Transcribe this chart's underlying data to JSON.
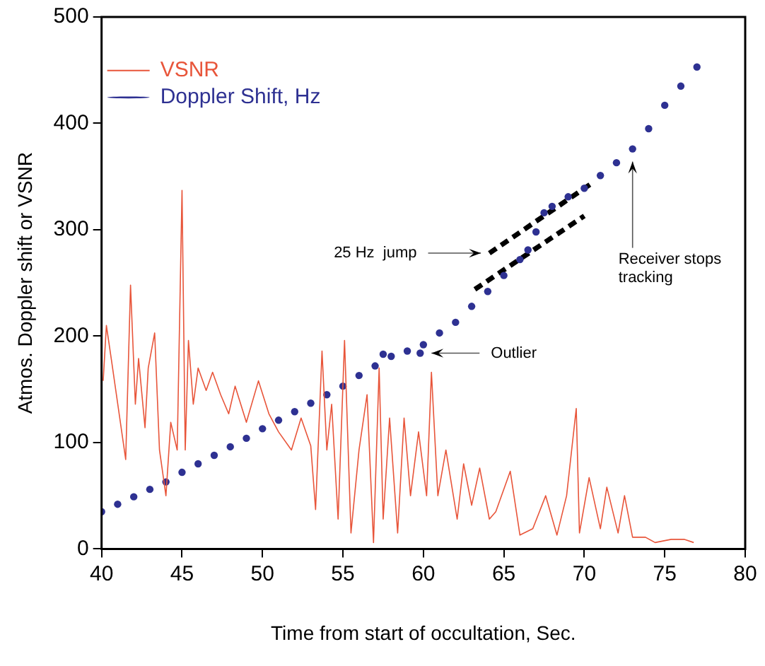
{
  "chart_data": {
    "type": "line",
    "xlabel": "Time from start of occultation, Sec.",
    "ylabel": "Atmos. Doppler shift or VSNR",
    "xlim": [
      40,
      80
    ],
    "xticks": [
      40,
      45,
      50,
      55,
      60,
      65,
      70,
      75,
      80
    ],
    "ylim": [
      0,
      500
    ],
    "yticks": [
      0,
      100,
      200,
      300,
      400,
      500
    ],
    "grid": false,
    "legend": "top left",
    "series": [
      {
        "name": "VSNR",
        "type": "line",
        "color": "#e8553a",
        "marker": "none",
        "x": [
          40.1,
          40.3,
          40.6,
          41.5,
          41.8,
          42.1,
          42.3,
          42.7,
          42.9,
          43.3,
          43.6,
          44.0,
          44.3,
          44.7,
          45.0,
          45.2,
          45.4,
          45.7,
          46.0,
          46.5,
          46.9,
          47.4,
          47.9,
          48.3,
          49.0,
          49.75,
          50.4,
          51.0,
          51.8,
          52.4,
          53.0,
          53.3,
          53.7,
          54.0,
          54.3,
          54.7,
          55.1,
          55.5,
          56.0,
          56.5,
          56.9,
          57.25,
          57.5,
          57.9,
          58.4,
          58.8,
          59.2,
          59.7,
          60.2,
          60.5,
          60.9,
          61.4,
          62.1,
          62.5,
          63.0,
          63.5,
          64.1,
          64.5,
          65.4,
          66.0,
          66.8,
          67.6,
          68.3,
          68.9,
          69.5,
          69.7,
          70.3,
          71.0,
          71.4,
          72.1,
          72.5,
          73.0,
          73.8,
          74.4,
          75.4,
          76.2,
          76.8
        ],
        "values": [
          158,
          210,
          179,
          84,
          248,
          136,
          179,
          114,
          170,
          203,
          93,
          50,
          119,
          93,
          337,
          93,
          196,
          136,
          170,
          149,
          166,
          145,
          127,
          153,
          119,
          158,
          127,
          110,
          93,
          123,
          97,
          37,
          186,
          93,
          136,
          28,
          196,
          15,
          93,
          145,
          6,
          170,
          28,
          123,
          15,
          123,
          50,
          110,
          50,
          166,
          50,
          93,
          28,
          80,
          41,
          76,
          28,
          35,
          73,
          13,
          19,
          50,
          13,
          50,
          132,
          15,
          67,
          19,
          58,
          15,
          50,
          11,
          11,
          6,
          9,
          9,
          6
        ]
      },
      {
        "name": "Doppler Shift, Hz",
        "type": "scatter",
        "color": "#2e3192",
        "marker": "circle",
        "x": [
          40,
          41,
          42,
          43,
          44,
          45,
          46,
          47,
          48,
          49,
          50,
          51,
          52,
          53,
          54,
          55,
          56,
          57,
          57.5,
          58,
          59,
          59.8,
          60,
          61,
          62,
          63,
          64,
          65,
          66,
          66.5,
          67,
          67.5,
          68,
          69,
          70,
          71,
          72,
          73,
          74,
          75,
          76,
          77
        ],
        "values": [
          35,
          42,
          49,
          56,
          63,
          72,
          80,
          88,
          96,
          104,
          113,
          121,
          129,
          137,
          145,
          153,
          163,
          172,
          183,
          181,
          186,
          184,
          192,
          203,
          213,
          228,
          242,
          257,
          272,
          281,
          298,
          316,
          322,
          331,
          339,
          351,
          363,
          376,
          395,
          417,
          435,
          453
        ]
      },
      {
        "type": "line",
        "color": "#000000",
        "line_style": "dashed",
        "marker": "none",
        "x": [
          64.1,
          70.6
        ],
        "values": [
          278,
          345
        ]
      },
      {
        "type": "line",
        "color": "#000000",
        "line_style": "dashed",
        "marker": "none",
        "x": [
          63.2,
          70.0
        ],
        "values": [
          244,
          313
        ]
      }
    ],
    "annotations": [
      {
        "text": "25 Hz  jump",
        "x": 64.1,
        "y": 278
      },
      {
        "text": "Outlier",
        "x": 59.8,
        "y": 184
      },
      {
        "text": "Receiver stops\ntracking",
        "x": 73,
        "y": 372
      }
    ]
  }
}
